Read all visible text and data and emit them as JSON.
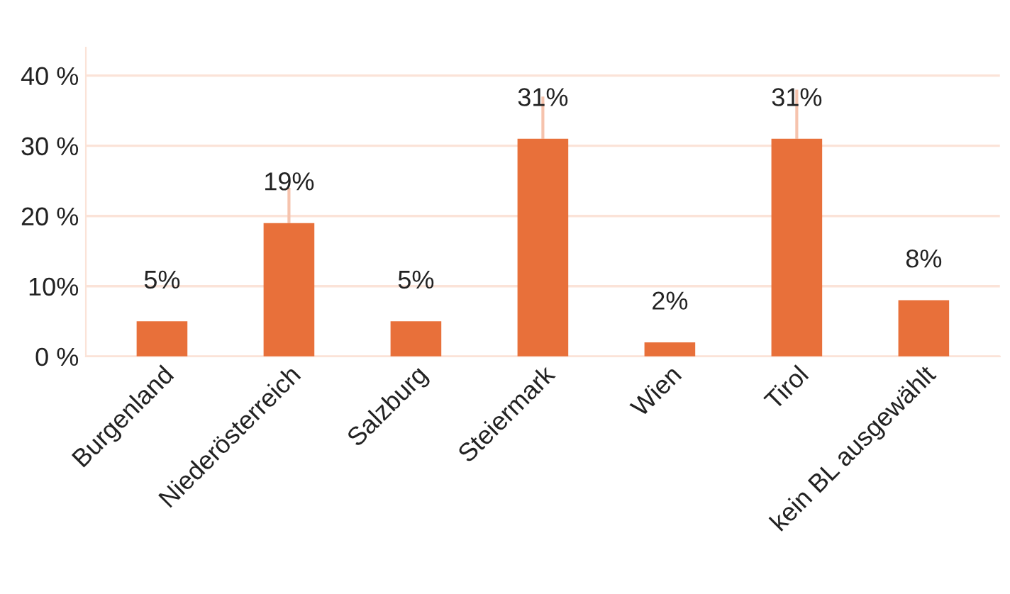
{
  "chart_data": {
    "type": "bar",
    "categories": [
      "Burgenland",
      "Niederösterreich",
      "Salzburg",
      "Steiermark",
      "Wien",
      "Tirol",
      "kein BL ausgewählt"
    ],
    "values": [
      5,
      19,
      5,
      31,
      2,
      31,
      8
    ],
    "errors": [
      null,
      [
        19,
        24
      ],
      null,
      [
        31,
        37
      ],
      null,
      [
        31,
        38
      ],
      null
    ],
    "color": "#e8703a",
    "value_labels": [
      "5%",
      "19%",
      "5%",
      "31%",
      "2%",
      "31%",
      "8%"
    ],
    "ylim": [
      0,
      44
    ],
    "yticks": [
      {
        "value": 0,
        "label": "0 %"
      },
      {
        "value": 10,
        "label": "10%"
      },
      {
        "value": 20,
        "label": "20 %"
      },
      {
        "value": 30,
        "label": "30 %"
      },
      {
        "value": 40,
        "label": "40 %"
      }
    ],
    "grid": "y"
  }
}
